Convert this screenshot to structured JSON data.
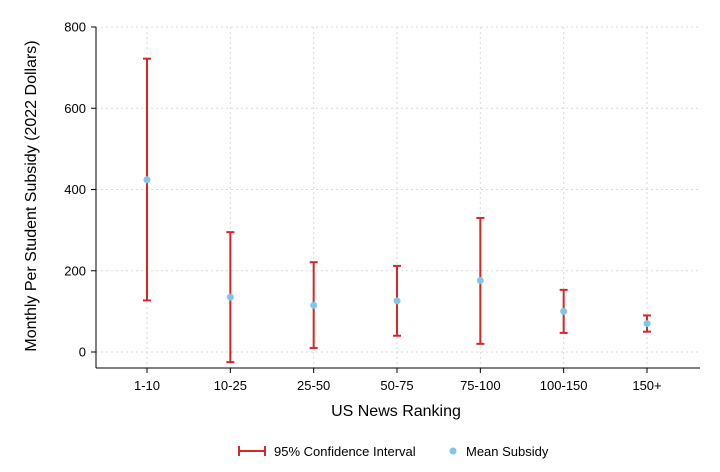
{
  "chart_data": {
    "type": "errorbar",
    "categories": [
      "1-10",
      "10-25",
      "25-50",
      "50-75",
      "75-100",
      "100-150",
      "150+"
    ],
    "series": [
      {
        "name": "Mean Subsidy",
        "values": [
          424,
          135,
          115,
          126,
          176,
          100,
          70
        ]
      },
      {
        "name": "95% Confidence Interval",
        "lower": [
          127,
          -25,
          10,
          40,
          20,
          47,
          50
        ],
        "upper": [
          722,
          295,
          221,
          212,
          330,
          153,
          90
        ]
      }
    ],
    "xlabel": "US News Ranking",
    "ylabel": "Monthly Per Student Subsidy (2022 Dollars)",
    "ylim": [
      -30,
      800
    ],
    "yticks": [
      0,
      200,
      400,
      600,
      800
    ],
    "grid": true,
    "legend": "bottom",
    "colors": {
      "ci": "#d62728",
      "mean": "#7fc6e8",
      "grid": "#d9d9d9"
    }
  }
}
